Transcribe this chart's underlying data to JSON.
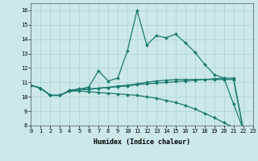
{
  "xlabel": "Humidex (Indice chaleur)",
  "background_color": "#cce8e8",
  "line_color": "#1a7a6e",
  "x": [
    0,
    1,
    2,
    3,
    4,
    5,
    6,
    7,
    8,
    9,
    10,
    11,
    12,
    13,
    14,
    15,
    16,
    17,
    18,
    19,
    20,
    21,
    22,
    23
  ],
  "lines": [
    [
      10.8,
      10.6,
      10.1,
      10.1,
      10.4,
      10.5,
      10.7,
      11.8,
      11.1,
      11.3,
      13.2,
      16.0,
      13.6,
      14.25,
      14.1,
      14.35,
      13.75,
      13.1,
      12.25,
      11.55,
      11.3,
      9.5,
      7.75,
      7.8
    ],
    [
      10.8,
      10.6,
      10.1,
      10.1,
      10.45,
      10.55,
      10.55,
      10.6,
      10.65,
      10.7,
      10.75,
      10.85,
      10.9,
      10.95,
      11.0,
      11.05,
      11.1,
      11.15,
      11.2,
      11.25,
      11.3,
      11.3,
      7.75,
      7.8
    ],
    [
      10.8,
      10.6,
      10.1,
      10.1,
      10.4,
      10.4,
      10.35,
      10.3,
      10.25,
      10.2,
      10.15,
      10.1,
      10.0,
      9.9,
      9.75,
      9.6,
      9.4,
      9.15,
      8.85,
      8.55,
      8.2,
      7.9,
      7.75,
      7.8
    ],
    [
      10.8,
      10.6,
      10.1,
      10.1,
      10.45,
      10.5,
      10.5,
      10.6,
      10.65,
      10.75,
      10.8,
      10.9,
      11.0,
      11.1,
      11.15,
      11.2,
      11.2,
      11.2,
      11.2,
      11.2,
      11.2,
      11.2,
      7.75,
      7.8
    ]
  ],
  "ylim": [
    8,
    16.5
  ],
  "xlim": [
    0,
    23
  ],
  "yticks": [
    8,
    9,
    10,
    11,
    12,
    13,
    14,
    15,
    16
  ],
  "xtick_labels": [
    "0",
    "1",
    "2",
    "3",
    "4",
    "5",
    "6",
    "7",
    "8",
    "9",
    "10",
    "11",
    "12",
    "13",
    "14",
    "15",
    "16",
    "17",
    "18",
    "19",
    "20",
    "21",
    "22",
    "23"
  ],
  "marker": "D",
  "markersize": 2.0,
  "linewidth": 0.9,
  "tick_fontsize": 5.0,
  "xlabel_fontsize": 6.0
}
